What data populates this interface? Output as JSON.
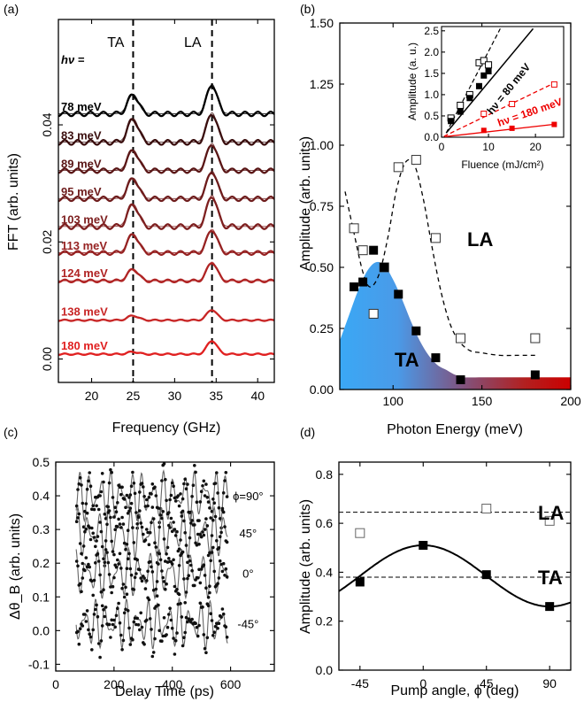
{
  "panels": {
    "a": "(a)",
    "b": "(b)",
    "c": "(c)",
    "d": "(d)"
  },
  "chart_data": [
    {
      "panel": "a",
      "type": "line",
      "xlabel": "Frequency (GHz)",
      "ylabel": "FFT (arb. units)",
      "xlim": [
        16,
        42
      ],
      "ylim": [
        -0.004,
        0.058
      ],
      "xticks": [
        20,
        25,
        30,
        35,
        40
      ],
      "yticks": [
        0.0,
        0.02,
        0.04
      ],
      "ytick_labels": [
        "0.00",
        "0.02",
        "0.04"
      ],
      "mode_labels": [
        "TA",
        "LA"
      ],
      "mode_positions": [
        25,
        34.5
      ],
      "hnu_label": "hν =",
      "series": [
        {
          "name": "78 meV",
          "color": "#000000",
          "offset": 0.0415,
          "ta": 0.0033,
          "la": 0.005
        },
        {
          "name": "83 meV",
          "color": "#3a0e0e",
          "offset": 0.0366,
          "ta": 0.004,
          "la": 0.005
        },
        {
          "name": "89 meV",
          "color": "#5a1616",
          "offset": 0.0318,
          "ta": 0.0035,
          "la": 0.0046
        },
        {
          "name": "95 meV",
          "color": "#6e1c1c",
          "offset": 0.027,
          "ta": 0.0035,
          "la": 0.0047
        },
        {
          "name": "103 meV",
          "color": "#7e2020",
          "offset": 0.0222,
          "ta": 0.0038,
          "la": 0.0053
        },
        {
          "name": "113 meV",
          "color": "#962222",
          "offset": 0.0178,
          "ta": 0.0032,
          "la": 0.004
        },
        {
          "name": "124 meV",
          "color": "#b02424",
          "offset": 0.0131,
          "ta": 0.002,
          "la": 0.0032
        },
        {
          "name": "138 meV",
          "color": "#c82626",
          "offset": 0.0065,
          "ta": 0.0008,
          "la": 0.0018
        },
        {
          "name": "180 meV",
          "color": "#e02020",
          "offset": 0.0007,
          "ta": 0.0004,
          "la": 0.0023
        }
      ]
    },
    {
      "panel": "b",
      "type": "scatter",
      "xlabel": "Photon Energy (meV)",
      "ylabel": "Amplitude (arb. units)",
      "xlim": [
        70,
        200
      ],
      "ylim": [
        0,
        1.5
      ],
      "xticks": [
        100,
        150,
        200
      ],
      "yticks": [
        0,
        0.25,
        0.5,
        0.75,
        1.0,
        1.25,
        1.5
      ],
      "ytick_labels": [
        "0.00",
        "0.25",
        "0.50",
        "0.75",
        "1.00",
        "1.25",
        "1.50"
      ],
      "LA_label": "LA",
      "TA_label": "TA",
      "LA_points": {
        "x": [
          78,
          83,
          89,
          95,
          103,
          113,
          124,
          138,
          180
        ],
        "y": [
          0.66,
          0.57,
          0.31,
          0.5,
          0.91,
          0.94,
          0.62,
          0.21,
          0.21
        ]
      },
      "TA_points": {
        "x": [
          78,
          83,
          89,
          95,
          103,
          113,
          124,
          138,
          180
        ],
        "y": [
          0.42,
          0.44,
          0.57,
          0.5,
          0.39,
          0.24,
          0.13,
          0.04,
          0.06
        ]
      },
      "LA_fit": {
        "x": [
          73,
          78,
          83,
          87,
          92,
          97,
          102,
          107,
          112,
          117,
          122,
          127,
          132,
          137,
          143,
          150,
          160,
          170,
          180
        ],
        "y": [
          0.81,
          0.64,
          0.48,
          0.42,
          0.47,
          0.62,
          0.82,
          0.93,
          0.92,
          0.78,
          0.58,
          0.4,
          0.27,
          0.2,
          0.16,
          0.15,
          0.14,
          0.14,
          0.14
        ]
      },
      "TA_area": {
        "x": [
          70,
          75,
          80,
          85,
          90,
          95,
          100,
          105,
          110,
          115,
          120,
          125,
          130,
          135,
          140,
          150,
          160,
          170,
          180,
          190,
          200
        ],
        "y": [
          0.2,
          0.3,
          0.4,
          0.48,
          0.52,
          0.51,
          0.45,
          0.37,
          0.28,
          0.2,
          0.14,
          0.1,
          0.08,
          0.06,
          0.05,
          0.05,
          0.05,
          0.05,
          0.05,
          0.05,
          0.05
        ]
      },
      "inset": {
        "xlabel": "Fluence (mJ/cm²)",
        "ylabel": "Amplitude (a. u.)",
        "xlim": [
          0,
          26
        ],
        "ylim": [
          0,
          2.6
        ],
        "xticks": [
          0,
          10,
          20
        ],
        "yticks": [
          0,
          0.5,
          1.0,
          1.5,
          2.0,
          2.5
        ],
        "ytick_labels": [
          "0.0",
          "0.5",
          "1.0",
          "1.5",
          "2.0",
          "2.5"
        ],
        "label_80": "hν = 80 meV",
        "label_180": "hν = 180 meV",
        "open_80": {
          "x": [
            2,
            4,
            6,
            8,
            9,
            10
          ],
          "y": [
            0.45,
            0.75,
            1.0,
            1.75,
            1.8,
            1.7
          ]
        },
        "filled_80": {
          "x": [
            2,
            4,
            6,
            8,
            9,
            10
          ],
          "y": [
            0.38,
            0.6,
            0.92,
            1.2,
            1.45,
            1.55
          ]
        },
        "open_180": {
          "x": [
            9,
            15,
            24
          ],
          "y": [
            0.55,
            0.78,
            1.24
          ]
        },
        "filled_180": {
          "x": [
            9,
            15,
            24
          ],
          "y": [
            0.16,
            0.21,
            0.3
          ]
        }
      }
    },
    {
      "panel": "c",
      "type": "line",
      "xlabel": "Delay Time (ps)",
      "ylabel": "Δθ_B (arb. units)",
      "xlim": [
        0,
        750
      ],
      "ylim": [
        -0.12,
        0.5
      ],
      "xticks": [
        0,
        200,
        400,
        600
      ],
      "yticks": [
        -0.1,
        0.0,
        0.1,
        0.2,
        0.3,
        0.4,
        0.5
      ],
      "ytick_labels": [
        "-0.1",
        "0.0",
        "0.1",
        "0.2",
        "0.3",
        "0.4",
        "0.5"
      ],
      "traces": [
        {
          "label": "ϕ=90°",
          "offset": 0.4
        },
        {
          "label": "45°",
          "offset": 0.29
        },
        {
          "label": "0°",
          "offset": 0.17
        },
        {
          "label": "-45°",
          "offset": 0.02
        }
      ]
    },
    {
      "panel": "d",
      "type": "scatter",
      "xlabel": "Pump angle, ϕ (deg)",
      "ylabel": "Amplitude (arb. units)",
      "xlim": [
        -60,
        105
      ],
      "ylim": [
        0,
        0.85
      ],
      "xticks": [
        -45,
        0,
        45,
        90
      ],
      "yticks": [
        0,
        0.2,
        0.4,
        0.6,
        0.8
      ],
      "ytick_labels": [
        "0.0",
        "0.2",
        "0.4",
        "0.6",
        "0.8"
      ],
      "LA_label": "LA",
      "TA_label": "TA",
      "LA_points": {
        "x": [
          -45,
          0,
          45,
          90
        ],
        "y": [
          0.56,
          0.74,
          0.66,
          0.61
        ]
      },
      "TA_points": {
        "x": [
          -45,
          0,
          45,
          90
        ],
        "y": [
          0.36,
          0.51,
          0.39,
          0.26
        ]
      },
      "LA_mean": 0.645,
      "TA_mean": 0.38,
      "TA_fit": {
        "mean": 0.385,
        "amp": 0.125,
        "phase_deg": 0
      }
    }
  ]
}
